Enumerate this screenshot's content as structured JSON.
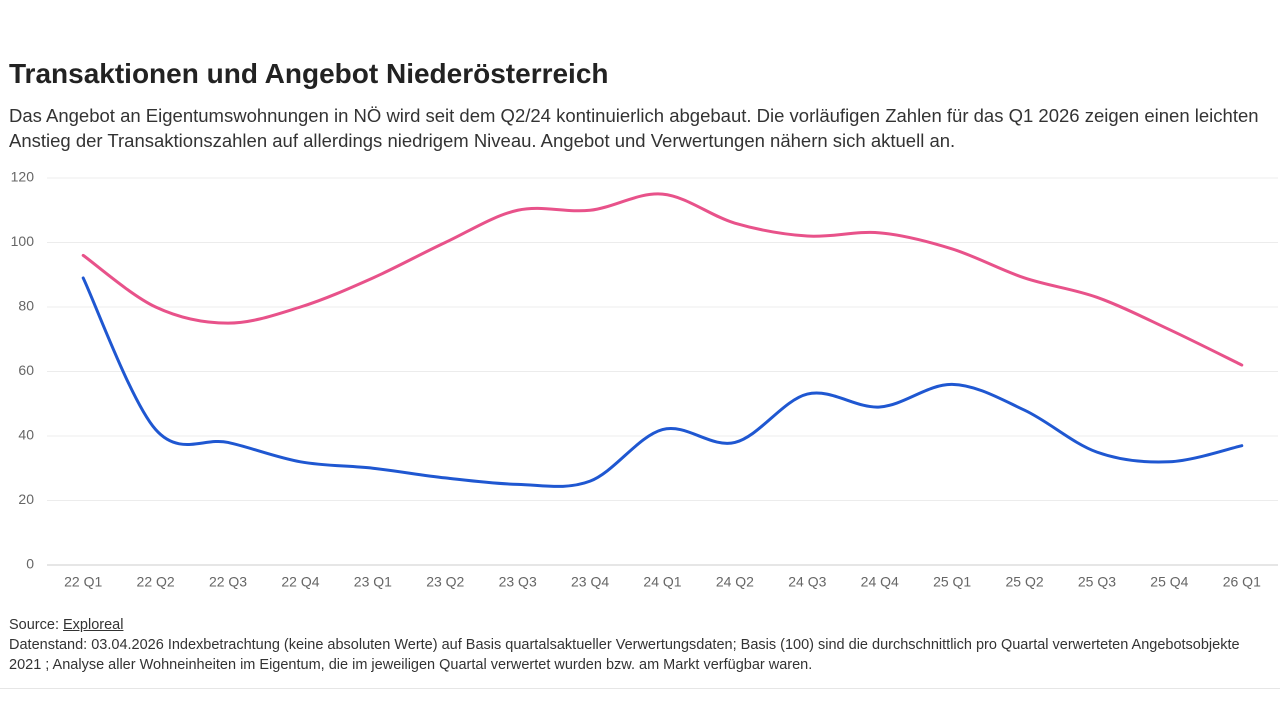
{
  "chart_data": {
    "type": "line",
    "title": "Transaktionen und Angebot Niederösterreich",
    "subtitle": "Das Angebot an Eigentumswohnungen in NÖ wird seit dem Q2/24 kontinuierlich abgebaut. Die vorläufigen Zahlen für das Q1 2026 zeigen einen leichten Anstieg der Transaktionszahlen auf allerdings niedrigem Niveau. Angebot und Verwertungen nähern sich aktuell an.",
    "categories": [
      "22 Q1",
      "22 Q2",
      "22 Q3",
      "22 Q4",
      "23 Q1",
      "23 Q2",
      "23 Q3",
      "23 Q4",
      "24 Q1",
      "24 Q2",
      "24 Q3",
      "24 Q4",
      "25 Q1",
      "25 Q2",
      "25 Q3",
      "25 Q4",
      "26 Q1"
    ],
    "series": [
      {
        "color": "#e8528a",
        "values": [
          96,
          80,
          75,
          80,
          89,
          100,
          110,
          110,
          115,
          106,
          102,
          103,
          98,
          89,
          83,
          73,
          62
        ]
      },
      {
        "color": "#1f57d1",
        "values": [
          89,
          42,
          38,
          32,
          30,
          27,
          25,
          26,
          42,
          38,
          53,
          49,
          56,
          48,
          35,
          32,
          37
        ]
      }
    ],
    "ylim": [
      0,
      120
    ],
    "yticks": [
      0,
      20,
      40,
      60,
      80,
      100,
      120
    ],
    "grid": true,
    "source_label": "Source:",
    "source": "Exploreal",
    "note": "Datenstand: 03.04.2026 Indexbetrachtung (keine absoluten Werte) auf Basis quartalsaktueller Verwertungsdaten; Basis (100) sind die durchschnittlich pro Quartal verwerteten Angebotsobjekte 2021 ; Analyse aller Wohneinheiten im Eigentum, die im jeweiligen Quartal verwertet wurden bzw. am Markt verfügbar waren."
  }
}
